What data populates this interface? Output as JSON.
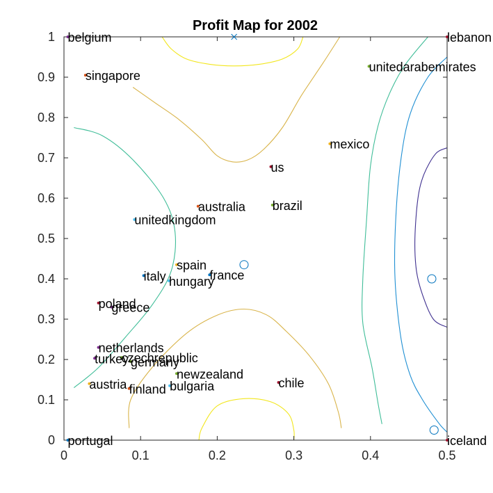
{
  "chart_data": {
    "type": "scatter",
    "title": "Profit Map for 2002",
    "xlabel": "",
    "ylabel": "",
    "xlim": [
      0,
      0.5
    ],
    "ylim": [
      0,
      1
    ],
    "xticks": [
      0,
      0.1,
      0.2,
      0.3,
      0.4,
      0.5
    ],
    "xtick_labels": [
      "0",
      "0.1",
      "0.2",
      "0.3",
      "0.4",
      "0.5"
    ],
    "yticks": [
      0,
      0.1,
      0.2,
      0.3,
      0.4,
      0.5,
      0.6,
      0.7,
      0.8,
      0.9,
      1
    ],
    "ytick_labels": [
      "0",
      "0.1",
      "0.2",
      "0.3",
      "0.4",
      "0.5",
      "0.6",
      "0.7",
      "0.8",
      "0.9",
      "1"
    ],
    "grid": false,
    "points": [
      {
        "label": "belgium",
        "x": 0.005,
        "y": 1.0,
        "color": "#7e2f8e"
      },
      {
        "label": "singapore",
        "x": 0.028,
        "y": 0.905,
        "color": "#d95319"
      },
      {
        "label": "lebanon",
        "x": 0.5,
        "y": 1.0,
        "color": "#a2142f"
      },
      {
        "label": "unitedarabemirates",
        "x": 0.398,
        "y": 0.927,
        "color": "#77ac30"
      },
      {
        "label": "mexico",
        "x": 0.347,
        "y": 0.735,
        "color": "#edb120"
      },
      {
        "label": "us",
        "x": 0.27,
        "y": 0.678,
        "color": "#a2142f"
      },
      {
        "label": "brazil",
        "x": 0.272,
        "y": 0.583,
        "color": "#77ac30"
      },
      {
        "label": "australia",
        "x": 0.175,
        "y": 0.58,
        "color": "#d95319"
      },
      {
        "label": "unitedkingdom",
        "x": 0.092,
        "y": 0.547,
        "color": "#4dbeee"
      },
      {
        "label": "spain",
        "x": 0.147,
        "y": 0.435,
        "color": "#edb120"
      },
      {
        "label": "france",
        "x": 0.19,
        "y": 0.41,
        "color": "#0072bd"
      },
      {
        "label": "italy",
        "x": 0.104,
        "y": 0.408,
        "color": "#0072bd"
      },
      {
        "label": "hungary",
        "x": 0.137,
        "y": 0.395,
        "color": "#4dbeee"
      },
      {
        "label": "poland",
        "x": 0.045,
        "y": 0.34,
        "color": "#a2142f"
      },
      {
        "label": "greece",
        "x": 0.062,
        "y": 0.33,
        "color": "#7e2f8e"
      },
      {
        "label": "netherlands",
        "x": 0.045,
        "y": 0.23,
        "color": "#7e2f8e"
      },
      {
        "label": "czechrepublic",
        "x": 0.075,
        "y": 0.205,
        "color": "#77ac30"
      },
      {
        "label": "turkey",
        "x": 0.04,
        "y": 0.203,
        "color": "#7e2f8e"
      },
      {
        "label": "germany",
        "x": 0.087,
        "y": 0.195,
        "color": "#77ac30"
      },
      {
        "label": "newzealand",
        "x": 0.147,
        "y": 0.165,
        "color": "#77ac30"
      },
      {
        "label": "chile",
        "x": 0.28,
        "y": 0.143,
        "color": "#a2142f"
      },
      {
        "label": "austria",
        "x": 0.033,
        "y": 0.14,
        "color": "#edb120"
      },
      {
        "label": "bulgaria",
        "x": 0.138,
        "y": 0.135,
        "color": "#4dbeee"
      },
      {
        "label": "finland",
        "x": 0.085,
        "y": 0.128,
        "color": "#d95319"
      },
      {
        "label": "portugal",
        "x": 0.005,
        "y": 0.0,
        "color": "#0072bd"
      },
      {
        "label": "iceland",
        "x": 0.5,
        "y": 0.0,
        "color": "#a2142f"
      }
    ],
    "centers": [
      {
        "marker": "circle",
        "x": 0.235,
        "y": 0.435
      },
      {
        "marker": "circle",
        "x": 0.48,
        "y": 0.4
      },
      {
        "marker": "circle",
        "x": 0.483,
        "y": 0.025
      },
      {
        "marker": "x",
        "x": 0.222,
        "y": 1.0
      }
    ],
    "contours": [
      {
        "name": "contour-yellow-top",
        "color": "#f2e61c",
        "points": [
          [
            0.128,
            1.0
          ],
          [
            0.14,
            0.97
          ],
          [
            0.16,
            0.945
          ],
          [
            0.19,
            0.932
          ],
          [
            0.222,
            0.928
          ],
          [
            0.255,
            0.932
          ],
          [
            0.285,
            0.945
          ],
          [
            0.305,
            0.97
          ],
          [
            0.312,
            1.0
          ]
        ]
      },
      {
        "name": "contour-yellow-bottom",
        "color": "#f2e61c",
        "points": [
          [
            0.176,
            0.0
          ],
          [
            0.18,
            0.03
          ],
          [
            0.2,
            0.085
          ],
          [
            0.235,
            0.103
          ],
          [
            0.27,
            0.095
          ],
          [
            0.293,
            0.065
          ],
          [
            0.3,
            0.025
          ],
          [
            0.3,
            0.0
          ]
        ]
      },
      {
        "name": "contour-orange-top",
        "color": "#d9b44a",
        "points": [
          [
            0.09,
            0.875
          ],
          [
            0.12,
            0.835
          ],
          [
            0.15,
            0.795
          ],
          [
            0.18,
            0.745
          ],
          [
            0.2,
            0.705
          ],
          [
            0.22,
            0.69
          ],
          [
            0.24,
            0.695
          ],
          [
            0.26,
            0.72
          ],
          [
            0.285,
            0.775
          ],
          [
            0.31,
            0.855
          ],
          [
            0.338,
            0.935
          ],
          [
            0.36,
            1.0
          ]
        ]
      },
      {
        "name": "contour-orange-bottom",
        "color": "#d9b44a",
        "points": [
          [
            0.085,
            0.03
          ],
          [
            0.087,
            0.1
          ],
          [
            0.115,
            0.18
          ],
          [
            0.16,
            0.265
          ],
          [
            0.2,
            0.31
          ],
          [
            0.235,
            0.325
          ],
          [
            0.265,
            0.31
          ],
          [
            0.29,
            0.27
          ],
          [
            0.32,
            0.21
          ],
          [
            0.345,
            0.14
          ],
          [
            0.358,
            0.07
          ],
          [
            0.362,
            0.03
          ]
        ]
      },
      {
        "name": "contour-green-left",
        "color": "#3fbd98",
        "points": [
          [
            0.013,
            0.775
          ],
          [
            0.05,
            0.755
          ],
          [
            0.09,
            0.695
          ],
          [
            0.13,
            0.6
          ],
          [
            0.145,
            0.515
          ],
          [
            0.14,
            0.42
          ],
          [
            0.115,
            0.335
          ],
          [
            0.08,
            0.255
          ],
          [
            0.045,
            0.18
          ],
          [
            0.013,
            0.13
          ]
        ]
      },
      {
        "name": "contour-green-right",
        "color": "#3fbd98",
        "points": [
          [
            0.475,
            1.0
          ],
          [
            0.445,
            0.93
          ],
          [
            0.425,
            0.86
          ],
          [
            0.41,
            0.78
          ],
          [
            0.4,
            0.68
          ],
          [
            0.395,
            0.55
          ],
          [
            0.39,
            0.4
          ],
          [
            0.39,
            0.29
          ],
          [
            0.402,
            0.18
          ],
          [
            0.41,
            0.09
          ],
          [
            0.415,
            0.04
          ]
        ]
      },
      {
        "name": "contour-blue",
        "color": "#1f8fd3",
        "points": [
          [
            0.5,
            0.95
          ],
          [
            0.475,
            0.9
          ],
          [
            0.452,
            0.81
          ],
          [
            0.44,
            0.7
          ],
          [
            0.433,
            0.55
          ],
          [
            0.432,
            0.4
          ],
          [
            0.44,
            0.25
          ],
          [
            0.452,
            0.16
          ],
          [
            0.468,
            0.1
          ],
          [
            0.49,
            0.04
          ],
          [
            0.5,
            0.02
          ]
        ]
      },
      {
        "name": "contour-navy",
        "color": "#3e2f8f",
        "points": [
          [
            0.5,
            0.725
          ],
          [
            0.485,
            0.71
          ],
          [
            0.47,
            0.66
          ],
          [
            0.462,
            0.6
          ],
          [
            0.458,
            0.5
          ],
          [
            0.46,
            0.42
          ],
          [
            0.468,
            0.36
          ],
          [
            0.482,
            0.3
          ],
          [
            0.5,
            0.28
          ]
        ]
      }
    ]
  }
}
